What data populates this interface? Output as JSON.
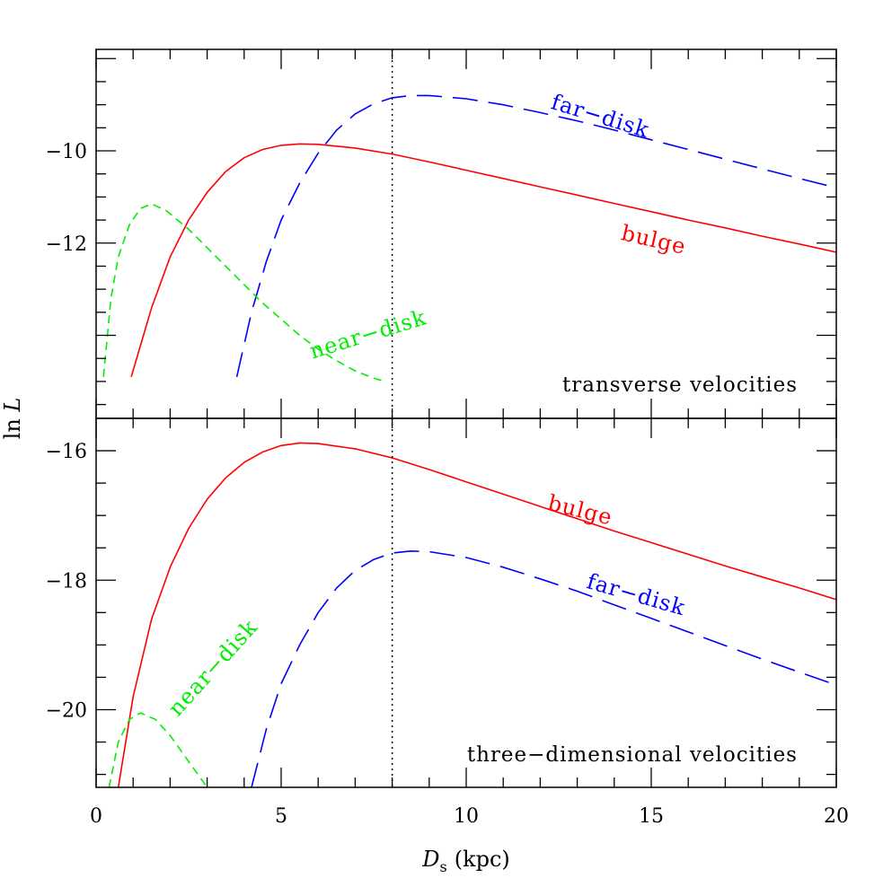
{
  "chart_data": {
    "type": "line",
    "xlabel_main": "D",
    "xlabel_sub": "s",
    "xlabel_unit": "(kpc)",
    "ylabel_main": "ln ",
    "ylabel_var": "L",
    "xlim": [
      0,
      20
    ],
    "x_ticks": [
      0,
      5,
      10,
      15,
      20
    ],
    "x_tick_labels": [
      "0",
      "5",
      "10",
      "15",
      "20"
    ],
    "vline_x": 8,
    "grid": false,
    "panels": [
      {
        "id": "top",
        "label": "transverse velocities",
        "ylim": [
          -15.8,
          -7.8
        ],
        "y_ticks": [
          -10,
          -12
        ],
        "y_tick_labels": [
          "−10",
          "−12"
        ],
        "series": [
          {
            "name": "bulge",
            "color": "#ff0000",
            "dash": "solid",
            "points": [
              [
                0.95,
                -14.9
              ],
              [
                1.5,
                -13.4
              ],
              [
                2,
                -12.3
              ],
              [
                2.5,
                -11.5
              ],
              [
                3,
                -10.9
              ],
              [
                3.5,
                -10.45
              ],
              [
                4,
                -10.15
              ],
              [
                4.5,
                -9.97
              ],
              [
                5,
                -9.88
              ],
              [
                5.5,
                -9.85
              ],
              [
                6,
                -9.86
              ],
              [
                7,
                -9.94
              ],
              [
                8,
                -10.07
              ],
              [
                9,
                -10.24
              ],
              [
                10,
                -10.42
              ],
              [
                11,
                -10.6
              ],
              [
                12,
                -10.78
              ],
              [
                13,
                -10.96
              ],
              [
                14,
                -11.14
              ],
              [
                15,
                -11.32
              ],
              [
                16,
                -11.5
              ],
              [
                17,
                -11.67
              ],
              [
                18,
                -11.85
              ],
              [
                19,
                -12.02
              ],
              [
                20,
                -12.2
              ]
            ]
          },
          {
            "name": "far−disk",
            "color": "#0000ff",
            "dash": "long",
            "points": [
              [
                3.8,
                -14.9
              ],
              [
                4.2,
                -13.5
              ],
              [
                4.6,
                -12.4
              ],
              [
                5,
                -11.5
              ],
              [
                5.5,
                -10.7
              ],
              [
                6,
                -10.05
              ],
              [
                6.5,
                -9.55
              ],
              [
                7,
                -9.2
              ],
              [
                7.5,
                -8.98
              ],
              [
                8,
                -8.85
              ],
              [
                8.5,
                -8.8
              ],
              [
                9,
                -8.8
              ],
              [
                10,
                -8.87
              ],
              [
                11,
                -9.0
              ],
              [
                12,
                -9.17
              ],
              [
                13,
                -9.35
              ],
              [
                14,
                -9.55
              ],
              [
                15,
                -9.76
              ],
              [
                16,
                -9.97
              ],
              [
                17,
                -10.18
              ],
              [
                18,
                -10.39
              ],
              [
                19,
                -10.6
              ],
              [
                20,
                -10.8
              ]
            ]
          },
          {
            "name": "near−disk",
            "color": "#00ee00",
            "dash": "short",
            "points": [
              [
                0.2,
                -14.9
              ],
              [
                0.4,
                -13.2
              ],
              [
                0.6,
                -12.3
              ],
              [
                0.9,
                -11.6
              ],
              [
                1.2,
                -11.25
              ],
              [
                1.5,
                -11.15
              ],
              [
                1.9,
                -11.3
              ],
              [
                2.5,
                -11.7
              ],
              [
                3,
                -12.1
              ],
              [
                3.5,
                -12.5
              ],
              [
                4,
                -12.9
              ],
              [
                4.5,
                -13.3
              ],
              [
                5,
                -13.65
              ],
              [
                5.5,
                -14.0
              ],
              [
                6,
                -14.3
              ],
              [
                6.5,
                -14.55
              ],
              [
                7,
                -14.77
              ],
              [
                7.5,
                -14.93
              ],
              [
                7.8,
                -15.0
              ]
            ]
          }
        ]
      },
      {
        "id": "bottom",
        "label": "three−dimensional velocities",
        "ylim": [
          -21.2,
          -15.5
        ],
        "y_ticks": [
          -16,
          -18,
          -20
        ],
        "y_tick_labels": [
          "−16",
          "−18",
          "−20"
        ],
        "series": [
          {
            "name": "bulge",
            "color": "#ff0000",
            "dash": "solid",
            "points": [
              [
                0.6,
                -21.2
              ],
              [
                1,
                -19.8
              ],
              [
                1.5,
                -18.6
              ],
              [
                2,
                -17.8
              ],
              [
                2.5,
                -17.2
              ],
              [
                3,
                -16.75
              ],
              [
                3.5,
                -16.42
              ],
              [
                4,
                -16.18
              ],
              [
                4.5,
                -16.02
              ],
              [
                5,
                -15.92
              ],
              [
                5.5,
                -15.88
              ],
              [
                6,
                -15.89
              ],
              [
                7,
                -15.97
              ],
              [
                8,
                -16.11
              ],
              [
                9,
                -16.29
              ],
              [
                10,
                -16.48
              ],
              [
                11,
                -16.67
              ],
              [
                12,
                -16.86
              ],
              [
                13,
                -17.05
              ],
              [
                14,
                -17.24
              ],
              [
                15,
                -17.42
              ],
              [
                16,
                -17.6
              ],
              [
                17,
                -17.78
              ],
              [
                18,
                -17.95
              ],
              [
                19,
                -18.12
              ],
              [
                20,
                -18.3
              ]
            ]
          },
          {
            "name": "far−disk",
            "color": "#0000ff",
            "dash": "long",
            "points": [
              [
                4.2,
                -21.2
              ],
              [
                4.6,
                -20.3
              ],
              [
                5,
                -19.6
              ],
              [
                5.5,
                -19.0
              ],
              [
                6,
                -18.5
              ],
              [
                6.5,
                -18.12
              ],
              [
                7,
                -17.85
              ],
              [
                7.5,
                -17.68
              ],
              [
                8,
                -17.58
              ],
              [
                8.5,
                -17.55
              ],
              [
                9,
                -17.56
              ],
              [
                10,
                -17.65
              ],
              [
                11,
                -17.8
              ],
              [
                12,
                -17.98
              ],
              [
                13,
                -18.17
              ],
              [
                14,
                -18.38
              ],
              [
                15,
                -18.59
              ],
              [
                16,
                -18.8
              ],
              [
                17,
                -19.01
              ],
              [
                18,
                -19.22
              ],
              [
                19,
                -19.42
              ],
              [
                20,
                -19.62
              ]
            ]
          },
          {
            "name": "near−disk",
            "color": "#00ee00",
            "dash": "short",
            "points": [
              [
                0.35,
                -21.2
              ],
              [
                0.6,
                -20.5
              ],
              [
                0.9,
                -20.15
              ],
              [
                1.2,
                -20.05
              ],
              [
                1.6,
                -20.15
              ],
              [
                2,
                -20.4
              ],
              [
                2.5,
                -20.8
              ],
              [
                3,
                -21.2
              ]
            ]
          }
        ]
      }
    ],
    "annotations": [
      {
        "panel": "top",
        "text": "far−disk",
        "color": "#0000ff"
      },
      {
        "panel": "top",
        "text": "bulge",
        "color": "#ff0000"
      },
      {
        "panel": "top",
        "text": "near−disk",
        "color": "#00ee00"
      },
      {
        "panel": "bottom",
        "text": "bulge",
        "color": "#ff0000"
      },
      {
        "panel": "bottom",
        "text": "far−disk",
        "color": "#0000ff"
      },
      {
        "panel": "bottom",
        "text": "near−disk",
        "color": "#00ee00"
      }
    ]
  }
}
